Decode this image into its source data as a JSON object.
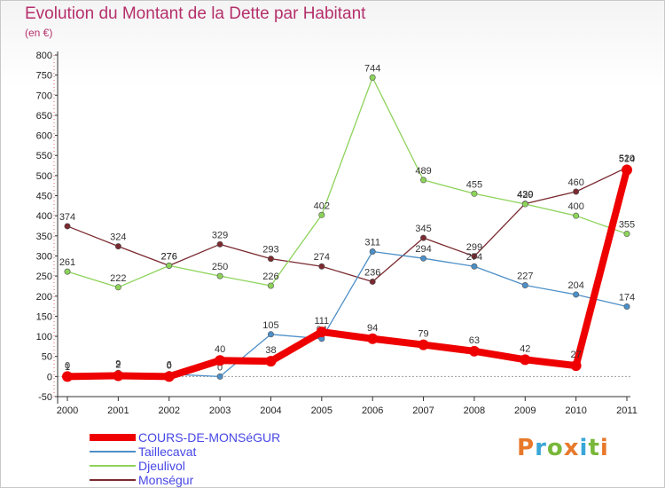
{
  "title": "Evolution du Montant de la Dette par Habitant",
  "subtitle": "(en €)",
  "logo": {
    "text": "Proxiti",
    "colors": [
      "#e8792b",
      "#3aa6d8",
      "#78b83a",
      "#e8792b",
      "#3aa6d8",
      "#78b83a",
      "#e8792b"
    ]
  },
  "chart_data": {
    "type": "line",
    "x": [
      2000,
      2001,
      2002,
      2003,
      2004,
      2005,
      2006,
      2007,
      2008,
      2009,
      2010,
      2011
    ],
    "ylim": [
      -50,
      800
    ],
    "yticks": [
      -50,
      0,
      50,
      100,
      150,
      200,
      250,
      300,
      350,
      400,
      450,
      500,
      550,
      600,
      650,
      700,
      750,
      800
    ],
    "grid": false,
    "legend_position": "bottom-left",
    "series": [
      {
        "name": "COURS-DE-MONSéGUR",
        "color": "#ee0000",
        "values": [
          0,
          2,
          0,
          40,
          38,
          111,
          94,
          79,
          63,
          42,
          27,
          514
        ]
      },
      {
        "name": "Taillecavat",
        "color": "#4d8fc7",
        "values": [
          1,
          9,
          6,
          0,
          105,
          94,
          311,
          294,
          274,
          227,
          204,
          174
        ]
      },
      {
        "name": "Djeulivol",
        "color": "#8dd35a",
        "values": [
          261,
          222,
          276,
          250,
          226,
          402,
          744,
          489,
          455,
          429,
          400,
          355
        ]
      },
      {
        "name": "Monségur",
        "color": "#7a2a30",
        "values": [
          374,
          324,
          276,
          329,
          293,
          274,
          236,
          345,
          299,
          430,
          460,
          520
        ]
      }
    ]
  }
}
